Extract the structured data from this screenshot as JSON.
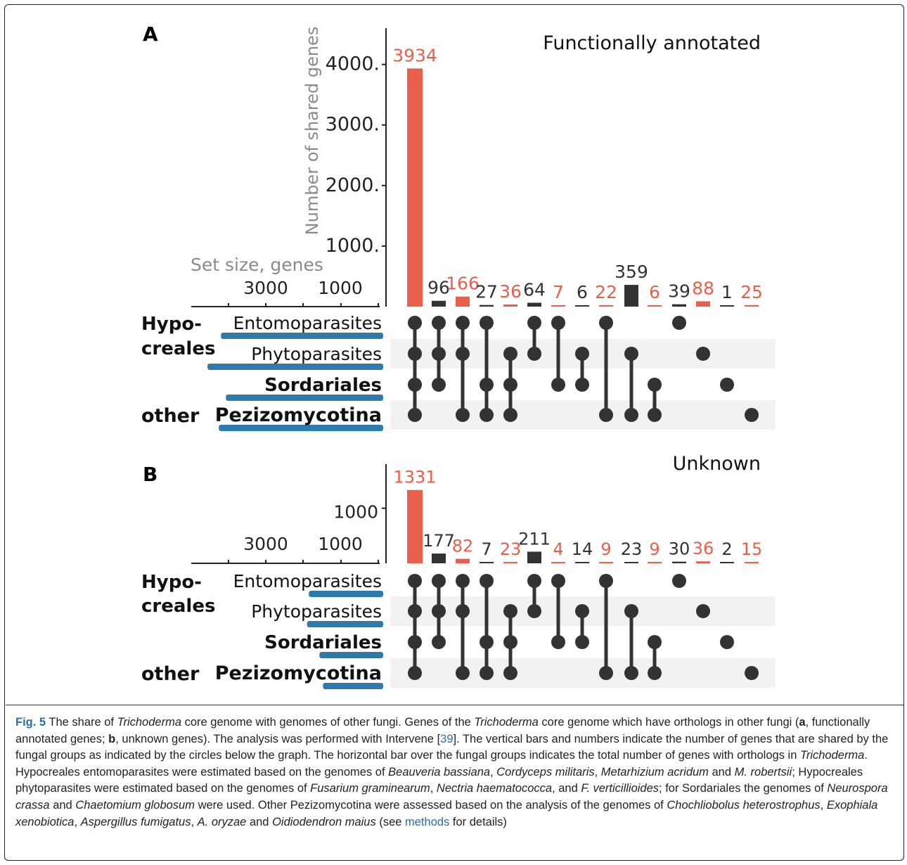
{
  "colors": {
    "highlight": "#e8604c",
    "dark": "#333333",
    "set_bar": "#2e7aac",
    "stripe": "#f2f2f2",
    "axis_label": "#8a8a8a"
  },
  "chart_data": [
    {
      "type": "bar",
      "panel_label": "A",
      "title": "Functionally annotated",
      "ylabel": "Number of shared genes",
      "yticks": [
        1000,
        2000,
        3000,
        4000
      ],
      "ytick_labels": [
        "1000.",
        "2000.",
        "3000.",
        "4000."
      ],
      "ylim": [
        0,
        4600
      ],
      "set_size_label": "Set size, genes",
      "set_size_ticks": [
        "3000",
        "1000"
      ],
      "set_size_max": 5200,
      "sets": [
        {
          "name": "Entomoparasites",
          "size": 4580
        },
        {
          "name": "Phytoparasites",
          "size": 4960
        },
        {
          "name": "Sordariales",
          "size": 4440
        },
        {
          "name": "Pezizomycotina",
          "size": 4640
        }
      ],
      "group_labels": {
        "hypo_line1": "Hypo-",
        "hypo_line2": "creales",
        "other": "other"
      },
      "intersections": [
        {
          "value": 3934,
          "label": "3934",
          "highlight": true,
          "members": [
            0,
            1,
            2,
            3
          ]
        },
        {
          "value": 96,
          "label": "96",
          "highlight": false,
          "members": [
            0,
            1,
            2
          ]
        },
        {
          "value": 166,
          "label": "166",
          "highlight": true,
          "members": [
            0,
            1,
            3
          ]
        },
        {
          "value": 27,
          "label": "27",
          "highlight": false,
          "members": [
            0,
            2,
            3
          ]
        },
        {
          "value": 36,
          "label": "36",
          "highlight": true,
          "members": [
            1,
            2,
            3
          ]
        },
        {
          "value": 64,
          "label": "64",
          "highlight": false,
          "members": [
            0,
            1
          ]
        },
        {
          "value": 7,
          "label": "7",
          "highlight": true,
          "members": [
            0,
            2
          ]
        },
        {
          "value": 6,
          "label": "6",
          "highlight": false,
          "members": [
            1,
            2
          ]
        },
        {
          "value": 22,
          "label": "22",
          "highlight": true,
          "members": [
            0,
            3
          ]
        },
        {
          "value": 359,
          "label": "359",
          "highlight": false,
          "members": [
            1,
            3
          ]
        },
        {
          "value": 6,
          "label": "6",
          "highlight": true,
          "members": [
            2,
            3
          ]
        },
        {
          "value": 39,
          "label": "39",
          "highlight": false,
          "members": [
            0
          ]
        },
        {
          "value": 88,
          "label": "88",
          "highlight": true,
          "members": [
            1
          ]
        },
        {
          "value": 1,
          "label": "1",
          "highlight": false,
          "members": [
            2
          ]
        },
        {
          "value": 25,
          "label": "25",
          "highlight": true,
          "members": [
            3
          ]
        }
      ]
    },
    {
      "type": "bar",
      "panel_label": "B",
      "title": "Unknown",
      "ylabel": "",
      "yticks": [
        1000
      ],
      "ytick_labels": [
        "1000"
      ],
      "ylim": [
        0,
        1800
      ],
      "set_size_label": "",
      "set_size_ticks": [
        "3000",
        "1000"
      ],
      "set_size_max": 5200,
      "sets": [
        {
          "name": "Entomoparasites",
          "size": 2100
        },
        {
          "name": "Phytoparasites",
          "size": 2150
        },
        {
          "name": "Sordariales",
          "size": 1800
        },
        {
          "name": "Pezizomycotina",
          "size": 1700
        }
      ],
      "group_labels": {
        "hypo_line1": "Hypo-",
        "hypo_line2": "creales",
        "other": "other"
      },
      "intersections": [
        {
          "value": 1331,
          "label": "1331",
          "highlight": true,
          "members": [
            0,
            1,
            2,
            3
          ]
        },
        {
          "value": 177,
          "label": "177",
          "highlight": false,
          "members": [
            0,
            1,
            2
          ]
        },
        {
          "value": 82,
          "label": "82",
          "highlight": true,
          "members": [
            0,
            1,
            3
          ]
        },
        {
          "value": 7,
          "label": "7",
          "highlight": false,
          "members": [
            0,
            2,
            3
          ]
        },
        {
          "value": 23,
          "label": "23",
          "highlight": true,
          "members": [
            1,
            2,
            3
          ]
        },
        {
          "value": 211,
          "label": "211",
          "highlight": false,
          "members": [
            0,
            1
          ]
        },
        {
          "value": 4,
          "label": "4",
          "highlight": true,
          "members": [
            0,
            2
          ]
        },
        {
          "value": 14,
          "label": "14",
          "highlight": false,
          "members": [
            1,
            2
          ]
        },
        {
          "value": 9,
          "label": "9",
          "highlight": true,
          "members": [
            0,
            3
          ]
        },
        {
          "value": 23,
          "label": "23",
          "highlight": false,
          "members": [
            1,
            3
          ]
        },
        {
          "value": 9,
          "label": "9",
          "highlight": true,
          "members": [
            2,
            3
          ]
        },
        {
          "value": 30,
          "label": "30",
          "highlight": false,
          "members": [
            0
          ]
        },
        {
          "value": 36,
          "label": "36",
          "highlight": true,
          "members": [
            1
          ]
        },
        {
          "value": 2,
          "label": "2",
          "highlight": false,
          "members": [
            2
          ]
        },
        {
          "value": 15,
          "label": "15",
          "highlight": true,
          "members": [
            3
          ]
        }
      ]
    }
  ],
  "caption": {
    "fig_label": "Fig. 5",
    "segments": [
      {
        "t": " The share of "
      },
      {
        "t": "Trichoderma",
        "i": true
      },
      {
        "t": " core genome with genomes of other fungi. Genes of the "
      },
      {
        "t": "Trichoderma",
        "i": true
      },
      {
        "t": " core genome which have orthologs in other fungi ("
      },
      {
        "t": "a",
        "b": true
      },
      {
        "t": ", functionally annotated genes; "
      },
      {
        "t": "b",
        "b": true
      },
      {
        "t": ", unknown genes). The analysis was performed with Intervene ["
      },
      {
        "t": "39",
        "c": true
      },
      {
        "t": "]. The vertical bars and numbers indicate the number of genes that are shared by the fungal groups as indicated by the circles below the graph. The horizontal bar over the fungal groups indicates the total number of genes with orthologs in "
      },
      {
        "t": "Trichoderma",
        "i": true
      },
      {
        "t": ". Hypocreales entomoparasites were estimated based on the genomes of "
      },
      {
        "t": "Beauveria bassiana",
        "i": true
      },
      {
        "t": ", "
      },
      {
        "t": "Cordyceps militaris",
        "i": true
      },
      {
        "t": ", "
      },
      {
        "t": "Metarhizium acridum",
        "i": true
      },
      {
        "t": " and "
      },
      {
        "t": "M. robertsii",
        "i": true
      },
      {
        "t": "; Hypocreales phytoparasites were estimated based on the genomes of "
      },
      {
        "t": "Fusarium graminearum",
        "i": true
      },
      {
        "t": ", "
      },
      {
        "t": "Nectria haematococca",
        "i": true
      },
      {
        "t": ", and "
      },
      {
        "t": "F. verticillioides",
        "i": true
      },
      {
        "t": "; for Sordariales the genomes of "
      },
      {
        "t": "Neurospora crassa",
        "i": true
      },
      {
        "t": " and "
      },
      {
        "t": "Chaetomium globosum",
        "i": true
      },
      {
        "t": " were used. Other Pezizomycotina were assessed based on the analysis of the genomes of "
      },
      {
        "t": "Chochliobolus heterostrophus",
        "i": true
      },
      {
        "t": ", "
      },
      {
        "t": "Exophiala xenobiotica",
        "i": true
      },
      {
        "t": ", "
      },
      {
        "t": "Aspergillus fumigatus",
        "i": true
      },
      {
        "t": ", "
      },
      {
        "t": "A. oryzae",
        "i": true
      },
      {
        "t": " and "
      },
      {
        "t": "Oidiodendron maius",
        "i": true
      },
      {
        "t": " (see "
      },
      {
        "t": "methods",
        "c": true
      },
      {
        "t": " for details)"
      }
    ]
  }
}
